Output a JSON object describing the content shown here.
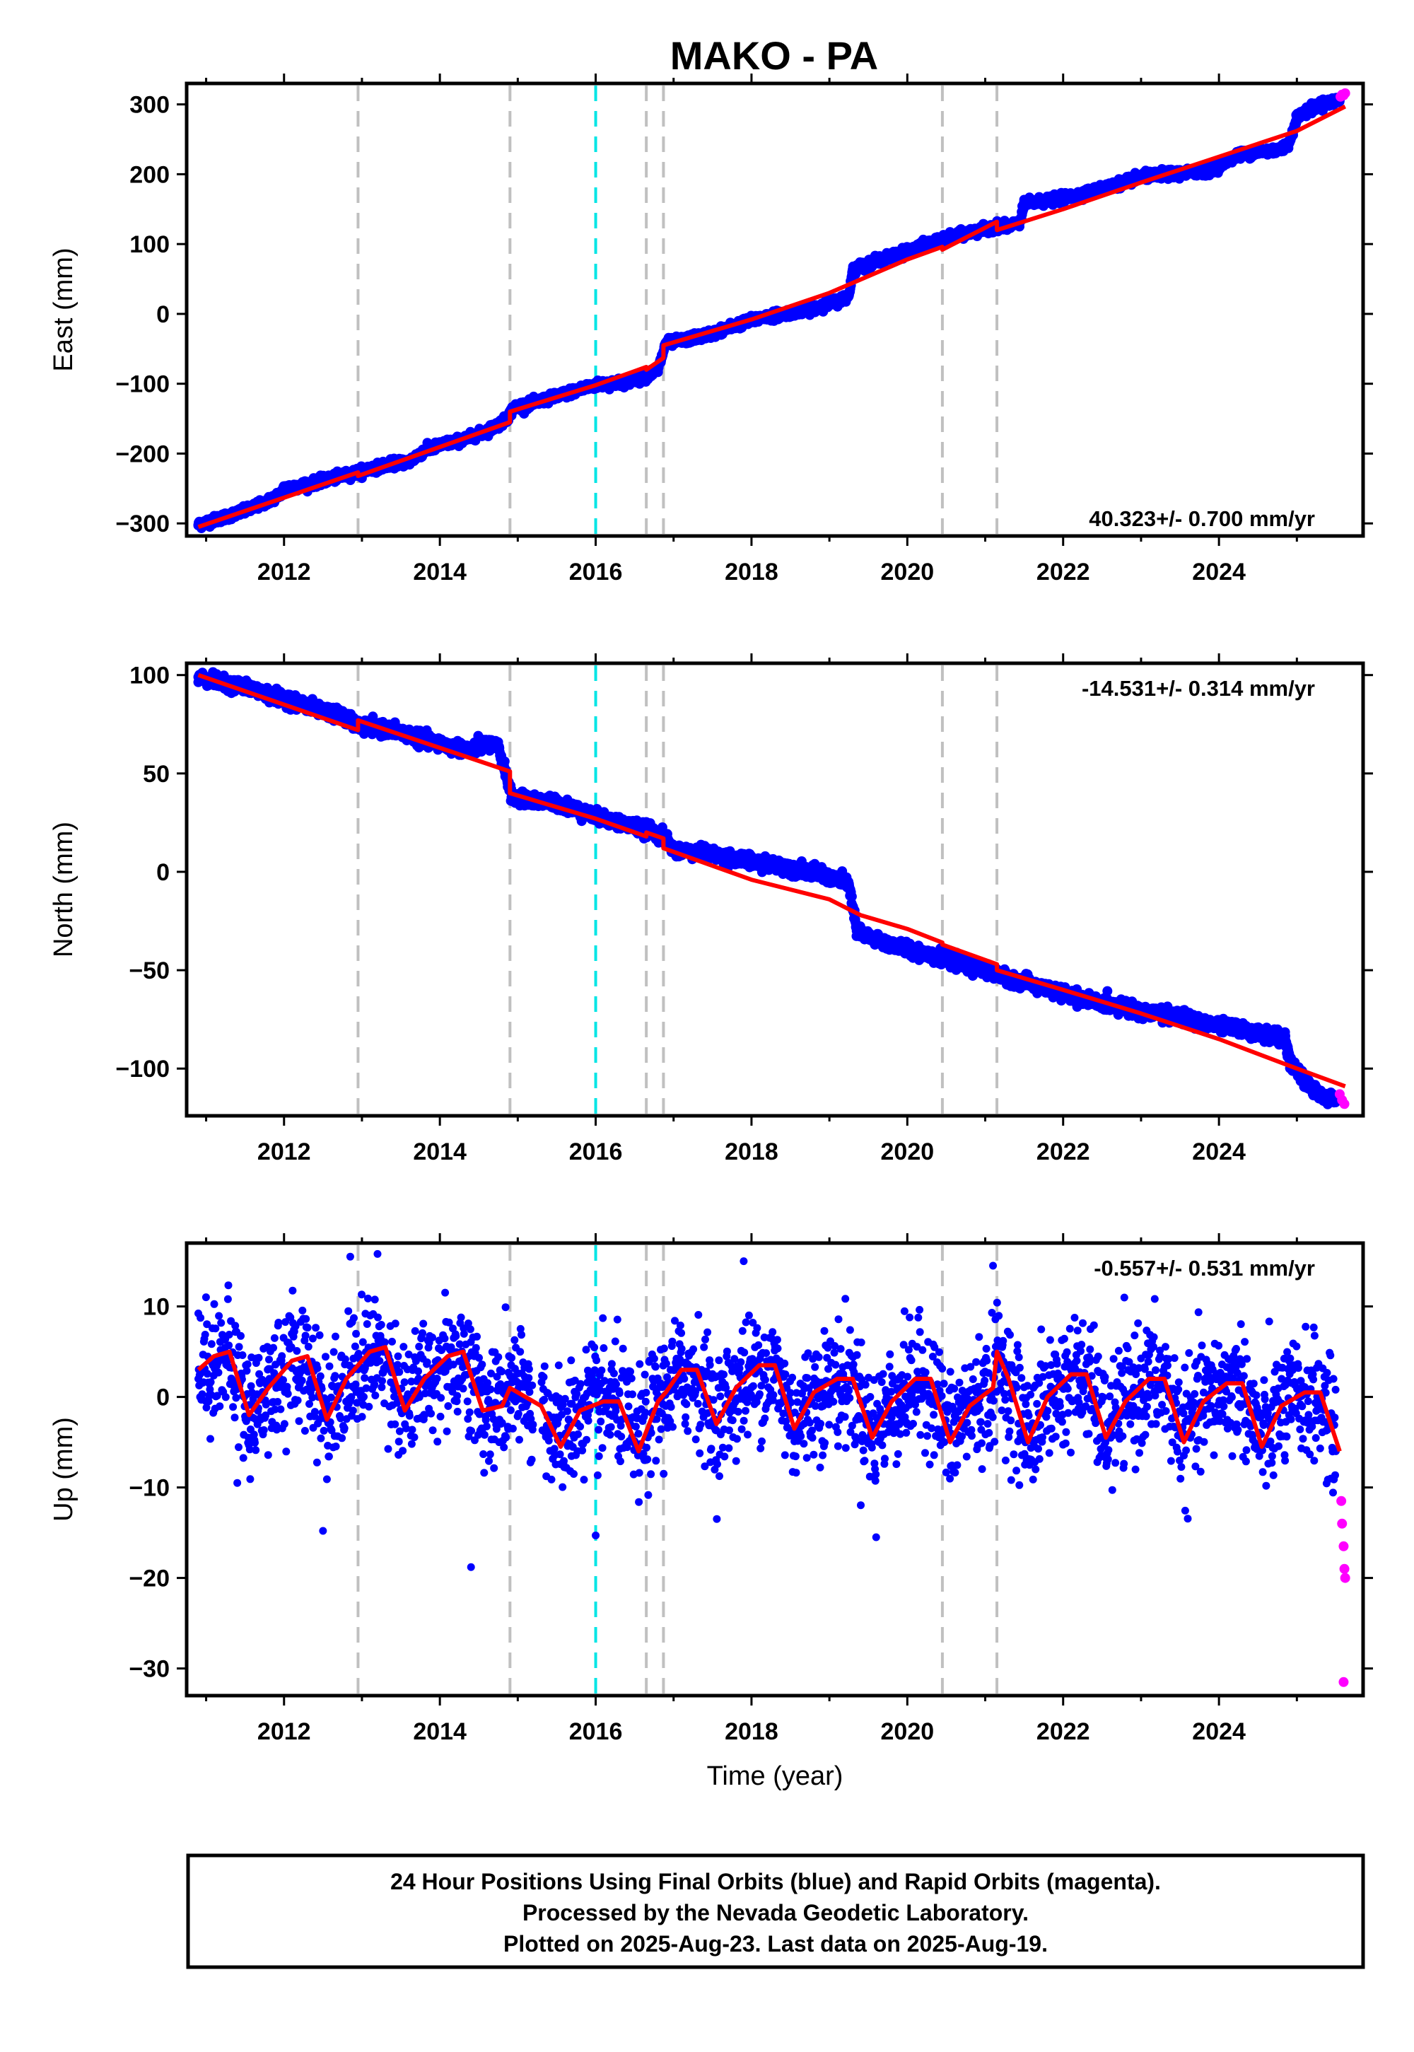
{
  "title": "MAKO - PA",
  "colors": {
    "final_orbits": "#0000ff",
    "rapid_orbits": "#ff00ff",
    "model": "#ff0000",
    "event_gray": "#c0c0c0",
    "event_cyan": "#00e5e5"
  },
  "footer": {
    "line1": "24 Hour Positions Using Final Orbits (blue) and Rapid Orbits (magenta).",
    "line2": "Processed by the Nevada Geodetic Laboratory.",
    "line3": "Plotted on 2025-Aug-23. Last data on 2025-Aug-19."
  },
  "chart_data": [
    {
      "type": "scatter",
      "component": "East",
      "title": "MAKO - PA",
      "xlabel": "",
      "ylabel": "East (mm)",
      "xlim": [
        2010.75,
        2025.85
      ],
      "ylim": [
        -318,
        330
      ],
      "xticks": [
        2012,
        2014,
        2016,
        2018,
        2020,
        2022,
        2024
      ],
      "yticks": [
        -300,
        -200,
        -100,
        0,
        100,
        200,
        300
      ],
      "rate_label": "40.323+/- 0.700 mm/yr",
      "rate_position": "bottom-right",
      "event_lines": [
        {
          "x": 2012.95,
          "color": "gray"
        },
        {
          "x": 2014.9,
          "color": "gray"
        },
        {
          "x": 2016.0,
          "color": "cyan"
        },
        {
          "x": 2016.65,
          "color": "gray"
        },
        {
          "x": 2016.87,
          "color": "gray"
        },
        {
          "x": 2020.45,
          "color": "gray"
        },
        {
          "x": 2021.15,
          "color": "gray"
        }
      ],
      "series": [
        {
          "name": "Final Orbits",
          "color": "blue",
          "x": [
            2010.9,
            2011.2,
            2011.5,
            2011.8,
            2011.95,
            2012.0,
            2012.3,
            2012.6,
            2012.9,
            2013.1,
            2013.4,
            2013.6,
            2013.8,
            2014.0,
            2014.3,
            2014.6,
            2014.85,
            2014.95,
            2015.2,
            2015.5,
            2015.8,
            2016.0,
            2016.3,
            2016.6,
            2016.8,
            2016.9,
            2017.2,
            2017.5,
            2017.8,
            2018.1,
            2018.4,
            2018.7,
            2018.9,
            2019.1,
            2019.25,
            2019.3,
            2019.6,
            2019.9,
            2020.2,
            2020.45,
            2020.7,
            2020.95,
            2021.15,
            2021.3,
            2021.45,
            2021.5,
            2021.8,
            2022.1,
            2022.4,
            2022.7,
            2023.0,
            2023.3,
            2023.6,
            2023.9,
            2024.2,
            2024.5,
            2024.8,
            2024.9,
            2025.0,
            2025.3,
            2025.55
          ],
          "y": [
            -302,
            -292,
            -282,
            -268,
            -258,
            -250,
            -244,
            -236,
            -228,
            -222,
            -214,
            -212,
            -196,
            -188,
            -180,
            -168,
            -152,
            -134,
            -128,
            -118,
            -108,
            -102,
            -98,
            -92,
            -80,
            -42,
            -36,
            -28,
            -16,
            -6,
            0,
            6,
            12,
            18,
            26,
            64,
            76,
            86,
            98,
            106,
            114,
            120,
            126,
            124,
            132,
            158,
            162,
            168,
            176,
            186,
            196,
            200,
            202,
            206,
            226,
            232,
            236,
            244,
            282,
            300,
            306
          ]
        },
        {
          "name": "Rapid Orbits",
          "color": "magenta",
          "x": [
            2025.56,
            2025.58,
            2025.6,
            2025.62
          ],
          "y": [
            311,
            314,
            313,
            316
          ]
        },
        {
          "name": "Model",
          "color": "red",
          "x": [
            2010.9,
            2012.95,
            2012.95,
            2014.9,
            2014.9,
            2016.0,
            2016.65,
            2016.65,
            2016.87,
            2016.87,
            2018.0,
            2019.0,
            2020.0,
            2020.45,
            2020.45,
            2021.15,
            2021.15,
            2022.0,
            2023.0,
            2024.0,
            2025.0,
            2025.62
          ],
          "y": [
            -305,
            -227,
            -232,
            -155,
            -140,
            -102,
            -76,
            -80,
            -63,
            -45,
            -8,
            30,
            78,
            96,
            92,
            132,
            120,
            150,
            188,
            225,
            262,
            297
          ]
        }
      ]
    },
    {
      "type": "scatter",
      "component": "North",
      "xlabel": "",
      "ylabel": "North (mm)",
      "xlim": [
        2010.75,
        2025.85
      ],
      "ylim": [
        -124,
        106
      ],
      "xticks": [
        2012,
        2014,
        2016,
        2018,
        2020,
        2022,
        2024
      ],
      "yticks": [
        -100,
        -50,
        0,
        50,
        100
      ],
      "rate_label": "-14.531+/- 0.314 mm/yr",
      "rate_position": "top-right",
      "event_lines": [
        {
          "x": 2012.95,
          "color": "gray"
        },
        {
          "x": 2014.9,
          "color": "gray"
        },
        {
          "x": 2016.0,
          "color": "cyan"
        },
        {
          "x": 2016.65,
          "color": "gray"
        },
        {
          "x": 2016.87,
          "color": "gray"
        },
        {
          "x": 2020.45,
          "color": "gray"
        },
        {
          "x": 2021.15,
          "color": "gray"
        }
      ],
      "series": [
        {
          "name": "Final Orbits",
          "color": "blue",
          "x": [
            2010.9,
            2011.2,
            2011.5,
            2011.8,
            2012.1,
            2012.4,
            2012.7,
            2012.95,
            2013.2,
            2013.5,
            2013.8,
            2014.1,
            2014.4,
            2014.6,
            2014.75,
            2014.85,
            2014.92,
            2015.2,
            2015.5,
            2015.8,
            2016.0,
            2016.3,
            2016.6,
            2016.85,
            2017.0,
            2017.3,
            2017.6,
            2017.9,
            2018.2,
            2018.5,
            2018.8,
            2019.0,
            2019.25,
            2019.35,
            2019.6,
            2019.9,
            2020.2,
            2020.45,
            2020.7,
            2021.0,
            2021.3,
            2021.6,
            2021.9,
            2022.2,
            2022.5,
            2022.8,
            2023.1,
            2023.4,
            2023.7,
            2024.0,
            2024.3,
            2024.6,
            2024.85,
            2024.92,
            2025.1,
            2025.3,
            2025.5
          ],
          "y": [
            99,
            96,
            94,
            90,
            87,
            83,
            80,
            74,
            73,
            71,
            67,
            64,
            62,
            65,
            63,
            50,
            38,
            36,
            35,
            31,
            28,
            25,
            22,
            19,
            11,
            10,
            8,
            6,
            4,
            2,
            0,
            -3,
            -6,
            -30,
            -35,
            -38,
            -41,
            -44,
            -47,
            -50,
            -54,
            -57,
            -61,
            -64,
            -67,
            -69,
            -71,
            -73,
            -76,
            -78,
            -80,
            -83,
            -85,
            -98,
            -106,
            -114,
            -115
          ]
        },
        {
          "name": "Rapid Orbits",
          "color": "magenta",
          "x": [
            2025.55,
            2025.58,
            2025.61
          ],
          "y": [
            -113,
            -116,
            -118
          ]
        },
        {
          "name": "Model",
          "color": "red",
          "x": [
            2010.9,
            2012.95,
            2012.95,
            2014.9,
            2014.9,
            2016.0,
            2016.65,
            2016.65,
            2016.87,
            2016.87,
            2018.0,
            2019.0,
            2019.4,
            2020.0,
            2020.45,
            2020.45,
            2021.15,
            2021.15,
            2022.0,
            2023.0,
            2024.0,
            2025.0,
            2025.62
          ],
          "y": [
            100,
            72,
            77,
            51,
            40,
            27,
            18,
            20,
            17,
            12,
            -4,
            -14,
            -22,
            -29,
            -36,
            -37,
            -47,
            -50,
            -60,
            -72,
            -85,
            -100,
            -109
          ]
        }
      ]
    },
    {
      "type": "scatter",
      "component": "Up",
      "xlabel": "Time (year)",
      "ylabel": "Up (mm)",
      "xlim": [
        2010.75,
        2025.85
      ],
      "ylim": [
        -33,
        17
      ],
      "xticks": [
        2012,
        2014,
        2016,
        2018,
        2020,
        2022,
        2024
      ],
      "yticks": [
        -30,
        -20,
        -10,
        0,
        10
      ],
      "rate_label": "-0.557+/- 0.531 mm/yr",
      "rate_position": "top-right",
      "event_lines": [
        {
          "x": 2012.95,
          "color": "gray"
        },
        {
          "x": 2014.9,
          "color": "gray"
        },
        {
          "x": 2016.0,
          "color": "cyan"
        },
        {
          "x": 2016.65,
          "color": "gray"
        },
        {
          "x": 2016.87,
          "color": "gray"
        },
        {
          "x": 2020.45,
          "color": "gray"
        },
        {
          "x": 2021.15,
          "color": "gray"
        }
      ],
      "seasonal_amplitude_mm": 4,
      "scatter_std_mm": 3.3,
      "series": [
        {
          "name": "Final Orbits",
          "color": "blue",
          "x": [
            2010.9,
            2011.9,
            2012.9,
            2013.9,
            2014.9,
            2015.9,
            2016.9,
            2017.9,
            2018.9,
            2019.9,
            2020.9,
            2021.9,
            2022.9,
            2023.9,
            2024.9,
            2025.5
          ],
          "y": [
            2,
            1,
            1,
            1,
            0,
            -2,
            -1,
            0,
            -1,
            -2,
            -1,
            -1,
            -1,
            -1,
            -2,
            -6
          ]
        },
        {
          "name": "Rapid Orbits",
          "color": "magenta",
          "x": [
            2025.57,
            2025.58,
            2025.6,
            2025.61,
            2025.62,
            2025.6
          ],
          "y": [
            -11.5,
            -14,
            -16.5,
            -19,
            -20,
            -31.5
          ]
        },
        {
          "name": "Model",
          "color": "red",
          "x": [
            2010.9,
            2011.1,
            2011.3,
            2011.55,
            2011.8,
            2012.1,
            2012.3,
            2012.55,
            2012.8,
            2013.1,
            2013.3,
            2013.55,
            2013.8,
            2014.1,
            2014.3,
            2014.55,
            2014.8,
            2014.9,
            2015.1,
            2015.3,
            2015.55,
            2015.8,
            2016.1,
            2016.3,
            2016.55,
            2016.8,
            2016.9,
            2017.1,
            2017.3,
            2017.55,
            2017.8,
            2018.1,
            2018.3,
            2018.55,
            2018.8,
            2019.1,
            2019.3,
            2019.55,
            2019.8,
            2020.1,
            2020.3,
            2020.55,
            2020.8,
            2021.1,
            2021.15,
            2021.3,
            2021.55,
            2021.8,
            2022.1,
            2022.3,
            2022.55,
            2022.8,
            2023.1,
            2023.3,
            2023.55,
            2023.8,
            2024.1,
            2024.3,
            2024.55,
            2024.8,
            2025.1,
            2025.3,
            2025.55
          ],
          "y": [
            3,
            4.5,
            5,
            -2,
            1,
            4,
            4.5,
            -2.5,
            2,
            5,
            5.5,
            -1.5,
            2,
            4.5,
            5,
            -1.5,
            -1,
            1,
            0,
            -1,
            -5.5,
            -1.5,
            -0.5,
            -0.5,
            -6,
            -0.5,
            0.5,
            3,
            3,
            -3,
            1,
            3.5,
            3.5,
            -3.5,
            0.5,
            2,
            2,
            -4.5,
            -0.5,
            2,
            2,
            -5,
            -1,
            1,
            5,
            2,
            -5,
            0,
            2.5,
            2.5,
            -4.5,
            -0.5,
            2,
            2,
            -5,
            -0.5,
            1.5,
            1.5,
            -5.5,
            -1,
            0.5,
            0.5,
            -6
          ]
        }
      ]
    }
  ]
}
